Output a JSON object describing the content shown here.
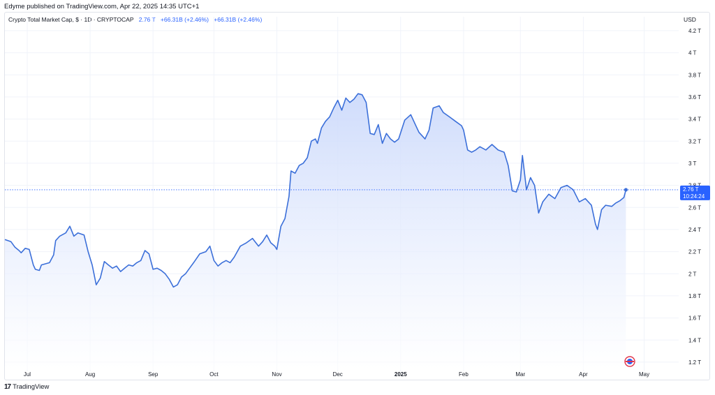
{
  "header": {
    "published_by": "Edyme published on TradingView.com, Apr 22, 2025 14:35 UTC+1"
  },
  "legend": {
    "symbol": "Crypto Total Market Cap, $ · 1D · CRYPTOCAP",
    "value": "2.76 T",
    "change_1": "+66.31B (+2.46%)",
    "change_2": "+66.31B (+2.46%)"
  },
  "price_axis": {
    "currency": "USD",
    "last_price": "2.76 T",
    "countdown": "10:24:24"
  },
  "footer": {
    "brand": "TradingView"
  },
  "colors": {
    "line": "#3b6fd9",
    "fill_top": "#c7d6fb",
    "label_bg": "#2962ff",
    "grid": "#f0f3fa"
  },
  "chart_data": {
    "type": "area",
    "title": "Crypto Total Market Cap, $ · 1D · CRYPTOCAP",
    "xlabel": "",
    "ylabel": "",
    "ylim": [
      1.13,
      4.25
    ],
    "y_ticks": [
      1.2,
      1.4,
      1.6,
      1.8,
      2.0,
      2.2,
      2.4,
      2.6,
      2.8,
      3.0,
      3.2,
      3.4,
      3.6,
      3.8,
      4.0,
      4.2
    ],
    "y_tick_labels": [
      "1.2 T",
      "1.4 T",
      "1.6 T",
      "1.8 T",
      "2 T",
      "2.2 T",
      "2.4 T",
      "2.6 T",
      "2.8 T",
      "3 T",
      "3.2 T",
      "3.4 T",
      "3.6 T",
      "3.8 T",
      "4 T",
      "4.2 T"
    ],
    "x_ticks": [
      {
        "label": "Jul",
        "date": "2024-07-01"
      },
      {
        "label": "Aug",
        "date": "2024-08-01"
      },
      {
        "label": "Sep",
        "date": "2024-09-01"
      },
      {
        "label": "Oct",
        "date": "2024-10-01"
      },
      {
        "label": "Nov",
        "date": "2024-11-01"
      },
      {
        "label": "Dec",
        "date": "2024-12-01"
      },
      {
        "label": "2025",
        "date": "2025-01-01"
      },
      {
        "label": "Feb",
        "date": "2025-02-01"
      },
      {
        "label": "Mar",
        "date": "2025-03-01"
      },
      {
        "label": "Apr",
        "date": "2025-04-01"
      },
      {
        "label": "May",
        "date": "2025-05-01"
      }
    ],
    "x_range": [
      "2024-06-20",
      "2025-05-18"
    ],
    "grid": true,
    "last_value": 2.76,
    "series": [
      {
        "points": [
          [
            "2024-06-20",
            2.31
          ],
          [
            "2024-06-23",
            2.29
          ],
          [
            "2024-06-25",
            2.24
          ],
          [
            "2024-06-27",
            2.21
          ],
          [
            "2024-06-28",
            2.19
          ],
          [
            "2024-06-30",
            2.23
          ],
          [
            "2024-07-02",
            2.22
          ],
          [
            "2024-07-04",
            2.08
          ],
          [
            "2024-07-05",
            2.04
          ],
          [
            "2024-07-07",
            2.03
          ],
          [
            "2024-07-08",
            2.08
          ],
          [
            "2024-07-10",
            2.09
          ],
          [
            "2024-07-12",
            2.1
          ],
          [
            "2024-07-14",
            2.17
          ],
          [
            "2024-07-15",
            2.3
          ],
          [
            "2024-07-17",
            2.34
          ],
          [
            "2024-07-20",
            2.37
          ],
          [
            "2024-07-22",
            2.43
          ],
          [
            "2024-07-24",
            2.34
          ],
          [
            "2024-07-26",
            2.37
          ],
          [
            "2024-07-29",
            2.35
          ],
          [
            "2024-07-31",
            2.2
          ],
          [
            "2024-08-02",
            2.08
          ],
          [
            "2024-08-04",
            1.9
          ],
          [
            "2024-08-06",
            1.96
          ],
          [
            "2024-08-08",
            2.11
          ],
          [
            "2024-08-10",
            2.08
          ],
          [
            "2024-08-12",
            2.05
          ],
          [
            "2024-08-14",
            2.07
          ],
          [
            "2024-08-16",
            2.02
          ],
          [
            "2024-08-18",
            2.05
          ],
          [
            "2024-08-20",
            2.08
          ],
          [
            "2024-08-22",
            2.07
          ],
          [
            "2024-08-24",
            2.1
          ],
          [
            "2024-08-26",
            2.12
          ],
          [
            "2024-08-28",
            2.21
          ],
          [
            "2024-08-30",
            2.18
          ],
          [
            "2024-09-01",
            2.04
          ],
          [
            "2024-09-03",
            2.05
          ],
          [
            "2024-09-05",
            2.03
          ],
          [
            "2024-09-07",
            2.0
          ],
          [
            "2024-09-09",
            1.95
          ],
          [
            "2024-09-11",
            1.88
          ],
          [
            "2024-09-13",
            1.9
          ],
          [
            "2024-09-15",
            1.97
          ],
          [
            "2024-09-17",
            2.0
          ],
          [
            "2024-09-19",
            2.05
          ],
          [
            "2024-09-21",
            2.1
          ],
          [
            "2024-09-24",
            2.18
          ],
          [
            "2024-09-27",
            2.2
          ],
          [
            "2024-09-29",
            2.25
          ],
          [
            "2024-10-01",
            2.12
          ],
          [
            "2024-10-03",
            2.07
          ],
          [
            "2024-10-05",
            2.1
          ],
          [
            "2024-10-07",
            2.12
          ],
          [
            "2024-10-09",
            2.1
          ],
          [
            "2024-10-11",
            2.15
          ],
          [
            "2024-10-14",
            2.25
          ],
          [
            "2024-10-17",
            2.28
          ],
          [
            "2024-10-20",
            2.32
          ],
          [
            "2024-10-23",
            2.25
          ],
          [
            "2024-10-25",
            2.29
          ],
          [
            "2024-10-27",
            2.35
          ],
          [
            "2024-10-29",
            2.28
          ],
          [
            "2024-10-31",
            2.25
          ],
          [
            "2024-11-01",
            2.22
          ],
          [
            "2024-11-03",
            2.43
          ],
          [
            "2024-11-05",
            2.5
          ],
          [
            "2024-11-07",
            2.7
          ],
          [
            "2024-11-08",
            2.93
          ],
          [
            "2024-11-10",
            2.91
          ],
          [
            "2024-11-12",
            2.98
          ],
          [
            "2024-11-14",
            3.0
          ],
          [
            "2024-11-16",
            3.05
          ],
          [
            "2024-11-18",
            3.2
          ],
          [
            "2024-11-20",
            3.22
          ],
          [
            "2024-11-21",
            3.18
          ],
          [
            "2024-11-23",
            3.32
          ],
          [
            "2024-11-25",
            3.38
          ],
          [
            "2024-11-27",
            3.42
          ],
          [
            "2024-11-29",
            3.5
          ],
          [
            "2024-12-01",
            3.57
          ],
          [
            "2024-12-03",
            3.48
          ],
          [
            "2024-12-05",
            3.59
          ],
          [
            "2024-12-07",
            3.55
          ],
          [
            "2024-12-09",
            3.58
          ],
          [
            "2024-12-11",
            3.63
          ],
          [
            "2024-12-13",
            3.62
          ],
          [
            "2024-12-15",
            3.55
          ],
          [
            "2024-12-17",
            3.27
          ],
          [
            "2024-12-19",
            3.26
          ],
          [
            "2024-12-21",
            3.35
          ],
          [
            "2024-12-23",
            3.18
          ],
          [
            "2024-12-25",
            3.27
          ],
          [
            "2024-12-27",
            3.22
          ],
          [
            "2024-12-29",
            3.19
          ],
          [
            "2024-12-31",
            3.22
          ],
          [
            "2025-01-03",
            3.39
          ],
          [
            "2025-01-06",
            3.44
          ],
          [
            "2025-01-08",
            3.36
          ],
          [
            "2025-01-10",
            3.28
          ],
          [
            "2025-01-13",
            3.22
          ],
          [
            "2025-01-15",
            3.3
          ],
          [
            "2025-01-17",
            3.5
          ],
          [
            "2025-01-20",
            3.52
          ],
          [
            "2025-01-22",
            3.46
          ],
          [
            "2025-01-25",
            3.42
          ],
          [
            "2025-01-28",
            3.38
          ],
          [
            "2025-01-31",
            3.34
          ],
          [
            "2025-02-01",
            3.3
          ],
          [
            "2025-02-03",
            3.12
          ],
          [
            "2025-02-05",
            3.1
          ],
          [
            "2025-02-07",
            3.12
          ],
          [
            "2025-02-09",
            3.15
          ],
          [
            "2025-02-12",
            3.12
          ],
          [
            "2025-02-15",
            3.17
          ],
          [
            "2025-02-18",
            3.12
          ],
          [
            "2025-02-21",
            3.1
          ],
          [
            "2025-02-23",
            2.98
          ],
          [
            "2025-02-25",
            2.75
          ],
          [
            "2025-02-27",
            2.74
          ],
          [
            "2025-03-01",
            2.85
          ],
          [
            "2025-03-02",
            3.07
          ],
          [
            "2025-03-04",
            2.76
          ],
          [
            "2025-03-06",
            2.87
          ],
          [
            "2025-03-08",
            2.8
          ],
          [
            "2025-03-10",
            2.55
          ],
          [
            "2025-03-12",
            2.65
          ],
          [
            "2025-03-15",
            2.72
          ],
          [
            "2025-03-18",
            2.68
          ],
          [
            "2025-03-21",
            2.78
          ],
          [
            "2025-03-24",
            2.8
          ],
          [
            "2025-03-27",
            2.76
          ],
          [
            "2025-03-30",
            2.65
          ],
          [
            "2025-04-02",
            2.68
          ],
          [
            "2025-04-05",
            2.62
          ],
          [
            "2025-04-07",
            2.45
          ],
          [
            "2025-04-08",
            2.4
          ],
          [
            "2025-04-10",
            2.58
          ],
          [
            "2025-04-12",
            2.62
          ],
          [
            "2025-04-15",
            2.61
          ],
          [
            "2025-04-17",
            2.64
          ],
          [
            "2025-04-19",
            2.66
          ],
          [
            "2025-04-21",
            2.69
          ],
          [
            "2025-04-22",
            2.76
          ]
        ]
      }
    ]
  }
}
